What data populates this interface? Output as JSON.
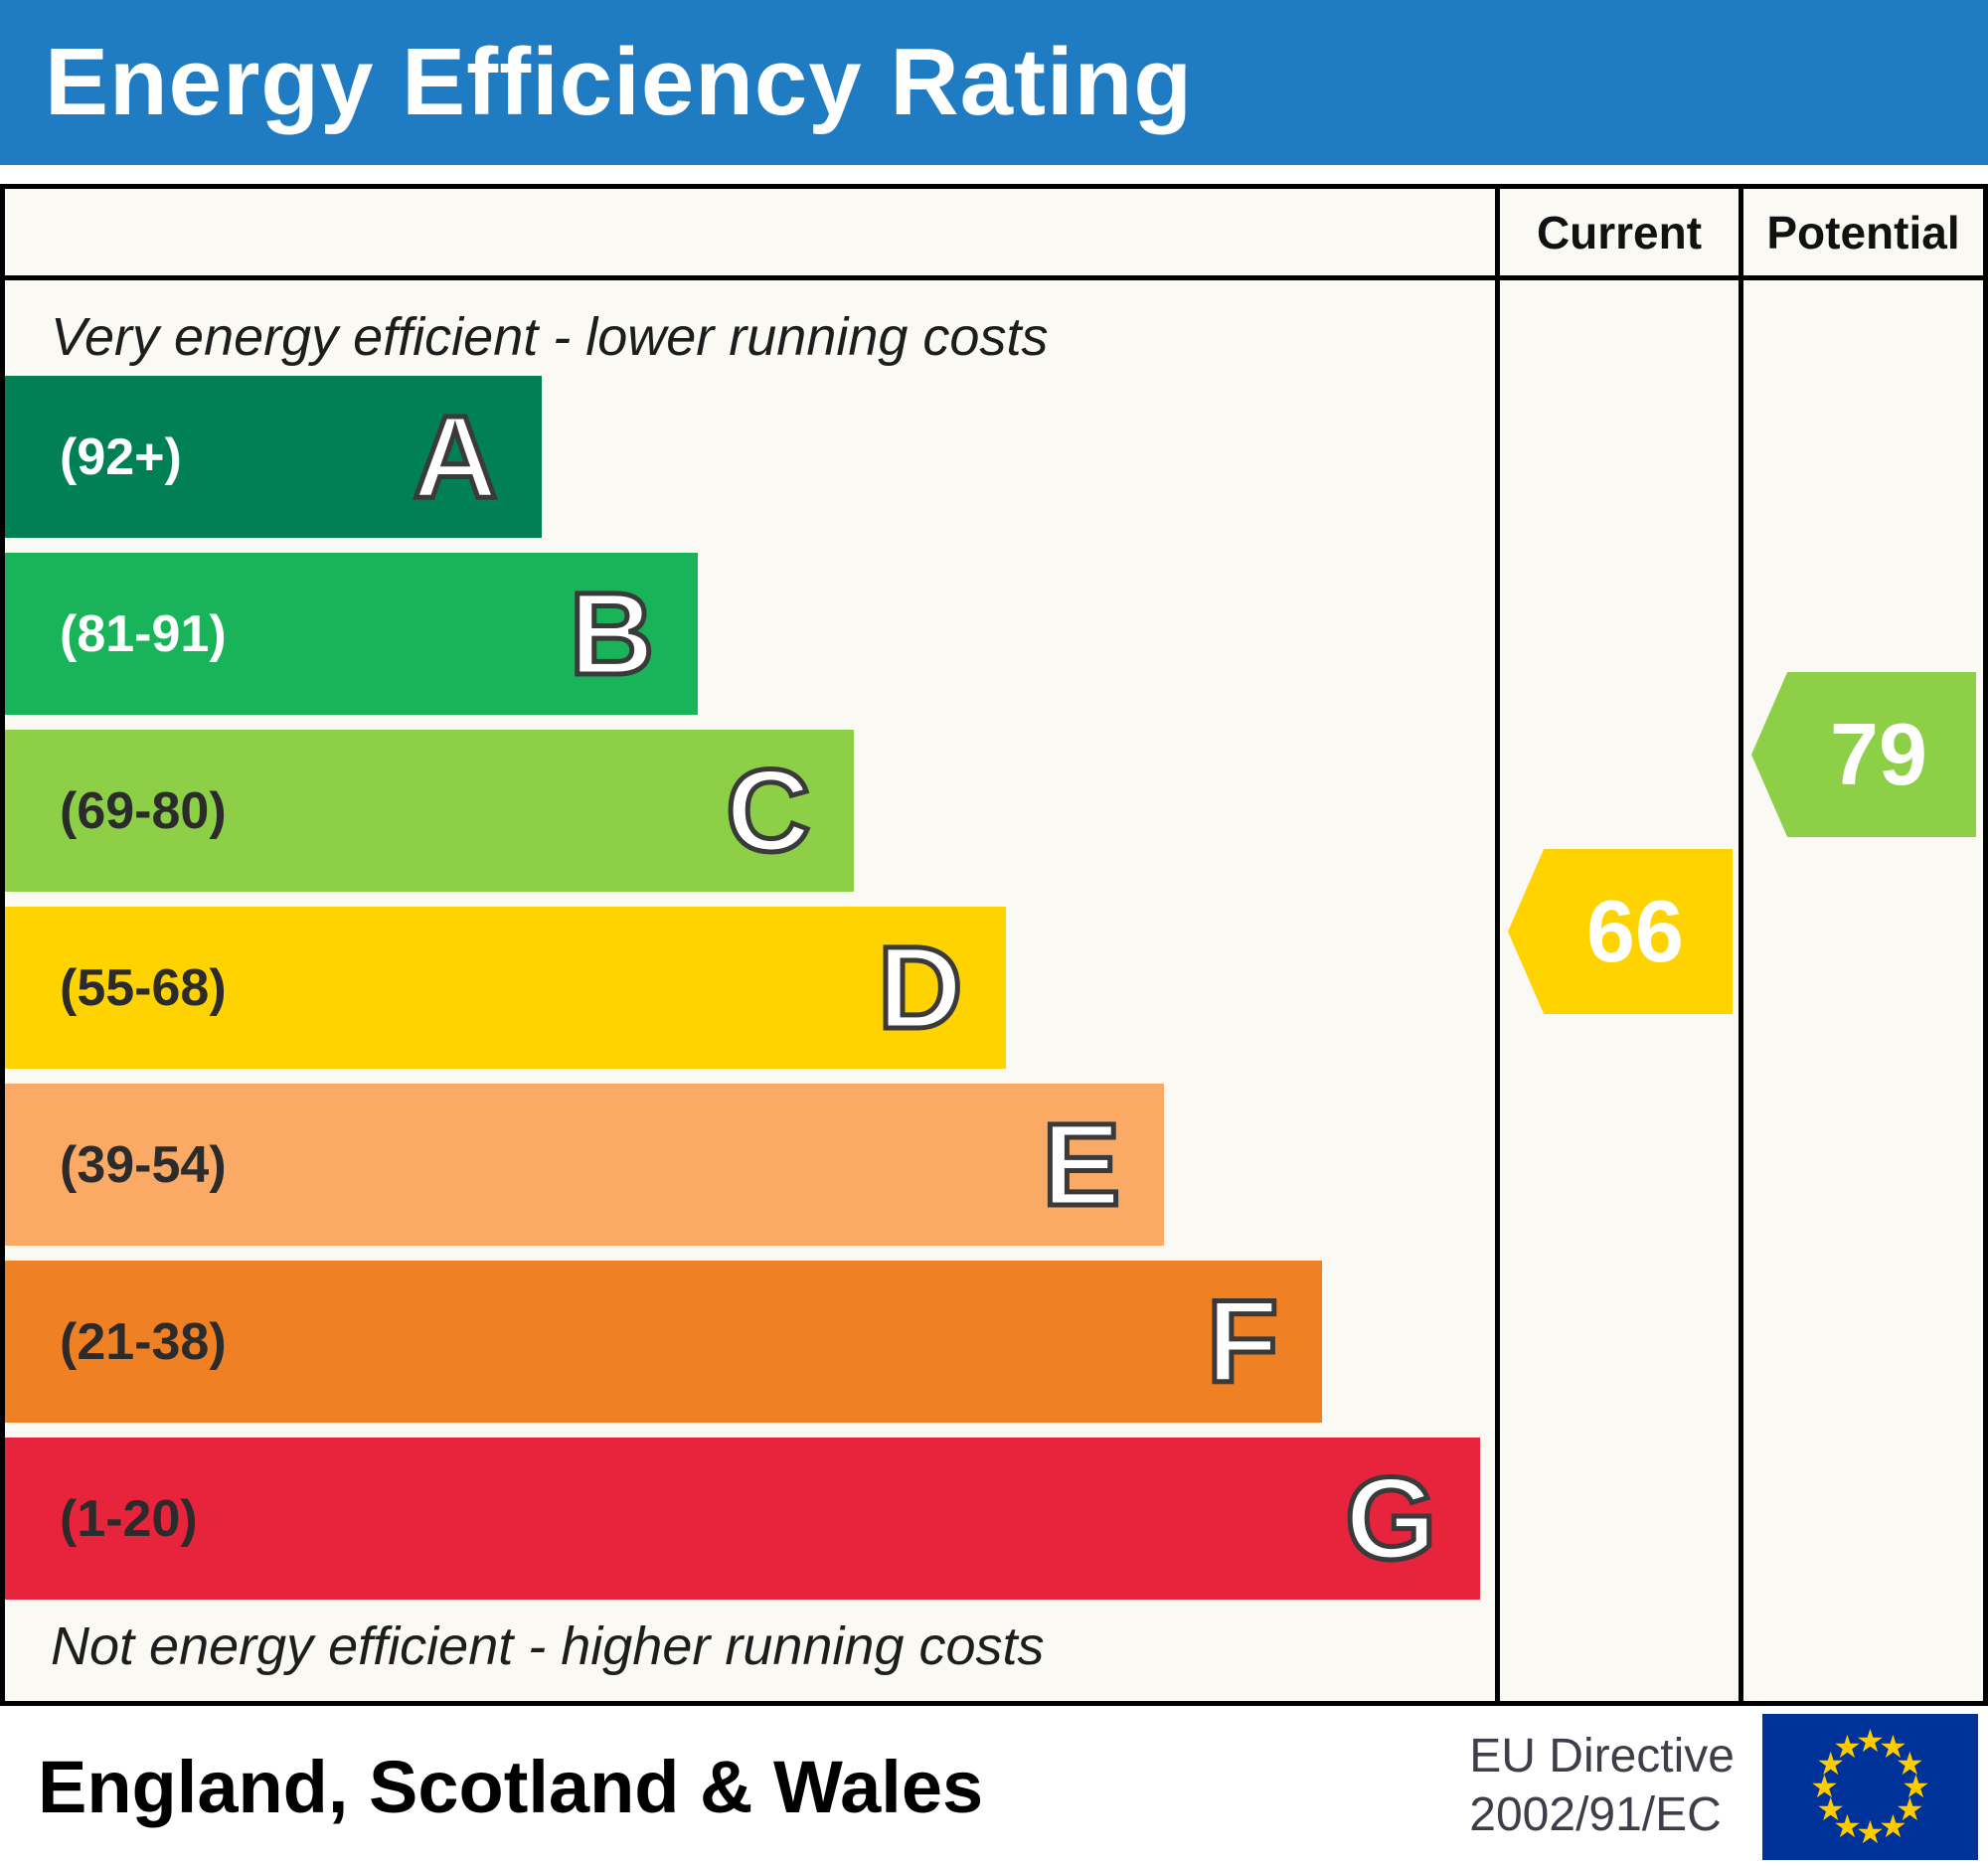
{
  "header": {
    "title": "Energy Efficiency Rating"
  },
  "columns": {
    "current": "Current",
    "potential": "Potential"
  },
  "notes": {
    "top": "Very energy efficient - lower running costs",
    "bottom": "Not energy efficient - higher running costs"
  },
  "footer": {
    "region": "England, Scotland & Wales",
    "directive_line1": "EU Directive",
    "directive_line2": "2002/91/EC"
  },
  "colors": {
    "header_bg": "#1f7bc2",
    "chart_bg": "#faf9f4",
    "current_arrow": "#ffd300",
    "potential_arrow": "#8dcf46",
    "flag_bg": "#003399",
    "flag_star": "#ffcc00",
    "flag_star_glyph": "★"
  },
  "chart_data": {
    "type": "bar",
    "title": "Energy Efficiency Rating",
    "categories": [
      "A",
      "B",
      "C",
      "D",
      "E",
      "F",
      "G"
    ],
    "bands": [
      {
        "letter": "A",
        "range_label": "(92+)",
        "min": 92,
        "max": 100,
        "color": "#008054",
        "width_pct": 36,
        "label_color": "#ffffff"
      },
      {
        "letter": "B",
        "range_label": "(81-91)",
        "min": 81,
        "max": 91,
        "color": "#19b459",
        "width_pct": 46.5,
        "label_color": "#ffffff"
      },
      {
        "letter": "C",
        "range_label": "(69-80)",
        "min": 69,
        "max": 80,
        "color": "#8dcf46",
        "width_pct": 57,
        "label_color": "#2b2b2b"
      },
      {
        "letter": "D",
        "range_label": "(55-68)",
        "min": 55,
        "max": 68,
        "color": "#ffd300",
        "width_pct": 67.2,
        "label_color": "#2b2b2b"
      },
      {
        "letter": "E",
        "range_label": "(39-54)",
        "min": 39,
        "max": 54,
        "color": "#fbaa65",
        "width_pct": 77.8,
        "label_color": "#2b2b2b"
      },
      {
        "letter": "F",
        "range_label": "(21-38)",
        "min": 21,
        "max": 38,
        "color": "#ef8023",
        "width_pct": 88.4,
        "label_color": "#2b2b2b"
      },
      {
        "letter": "G",
        "range_label": "(1-20)",
        "min": 1,
        "max": 20,
        "color": "#e8233c",
        "width_pct": 99,
        "label_color": "#2b2b2b"
      }
    ],
    "current": {
      "value": 66,
      "band": "D"
    },
    "potential": {
      "value": 79,
      "band": "C"
    }
  }
}
